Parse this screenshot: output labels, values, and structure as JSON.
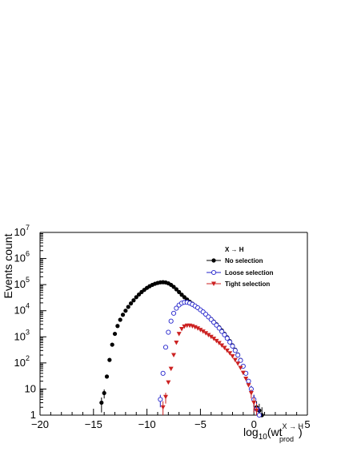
{
  "chart_data": {
    "type": "scatter",
    "title": "",
    "xlabel": "log10(wt_prod^{X→H})",
    "xlabel_parts": {
      "base": "log",
      "sub1": "10",
      "mid": "(wt",
      "sup": "X → H",
      "sub2": "prod",
      "end": ")"
    },
    "ylabel": "Events count",
    "xlim": [
      -20,
      5
    ],
    "ylim": [
      1,
      10000000
    ],
    "yscale": "log",
    "x_ticks": [
      -20,
      -15,
      -10,
      -5,
      0,
      5
    ],
    "x_tick_labels": [
      "−20",
      "−15",
      "−10",
      "−5",
      "0",
      "5"
    ],
    "y_tick_labels": [
      {
        "base": "1",
        "exp": ""
      },
      {
        "base": "10",
        "exp": ""
      },
      {
        "base": "10",
        "exp": "2"
      },
      {
        "base": "10",
        "exp": "3"
      },
      {
        "base": "10",
        "exp": "4"
      },
      {
        "base": "10",
        "exp": "5"
      },
      {
        "base": "10",
        "exp": "6"
      },
      {
        "base": "10",
        "exp": "7"
      }
    ],
    "legend_header": "X → H",
    "legend_placement": "top-right",
    "grid": false,
    "series": [
      {
        "name": "No selection",
        "color": "#000000",
        "marker": "filled-circle",
        "x": [
          -14.25,
          -14.0,
          -13.75,
          -13.5,
          -13.25,
          -13.0,
          -12.75,
          -12.5,
          -12.25,
          -12.0,
          -11.75,
          -11.5,
          -11.25,
          -11.0,
          -10.75,
          -10.5,
          -10.25,
          -10.0,
          -9.75,
          -9.5,
          -9.25,
          -9.0,
          -8.75,
          -8.5,
          -8.25,
          -8.0,
          -7.75,
          -7.5,
          -7.25,
          -7.0,
          -6.75,
          -6.5,
          -6.25,
          -6.0,
          -5.75,
          -5.5,
          -5.25,
          -5.0,
          -4.75,
          -4.5,
          -4.25,
          -4.0,
          -3.75,
          -3.5,
          -3.25,
          -3.0,
          -2.75,
          -2.5,
          -2.25,
          -2.0,
          -1.75,
          -1.5,
          -1.25,
          -1.0,
          -0.75,
          -0.5,
          -0.25,
          0.0,
          0.25,
          0.5,
          0.75
        ],
        "y": [
          3,
          7,
          30,
          130,
          500,
          1300,
          2600,
          4500,
          7000,
          10000,
          14000,
          19000,
          25000,
          33000,
          42000,
          52000,
          63000,
          75000,
          87000,
          98000,
          108000,
          116000,
          122000,
          124000,
          121000,
          112000,
          98000,
          82000,
          66000,
          52000,
          41000,
          33000,
          27000,
          22000,
          18500,
          15500,
          13000,
          10800,
          9000,
          7400,
          6000,
          4800,
          3800,
          3000,
          2300,
          1750,
          1300,
          950,
          680,
          470,
          320,
          210,
          130,
          75,
          40,
          20,
          10,
          4,
          2,
          1.5,
          1
        ]
      },
      {
        "name": "Loose selection",
        "color": "#2222cc",
        "marker": "open-circle",
        "x": [
          -8.75,
          -8.5,
          -8.25,
          -8.0,
          -7.75,
          -7.5,
          -7.25,
          -7.0,
          -6.75,
          -6.5,
          -6.25,
          -6.0,
          -5.75,
          -5.5,
          -5.25,
          -5.0,
          -4.75,
          -4.5,
          -4.25,
          -4.0,
          -3.75,
          -3.5,
          -3.25,
          -3.0,
          -2.75,
          -2.5,
          -2.25,
          -2.0,
          -1.75,
          -1.5,
          -1.25,
          -1.0,
          -0.75,
          -0.5,
          -0.25,
          0.0,
          0.25,
          0.5
        ],
        "y": [
          4,
          40,
          400,
          1500,
          4000,
          8000,
          12500,
          16500,
          19500,
          21000,
          21000,
          19500,
          17500,
          15200,
          13000,
          10800,
          9000,
          7300,
          5800,
          4600,
          3600,
          2800,
          2150,
          1600,
          1200,
          880,
          630,
          440,
          300,
          200,
          125,
          75,
          40,
          20,
          10,
          4,
          1.7,
          1
        ]
      },
      {
        "name": "Tight selection",
        "color": "#cc2222",
        "marker": "filled-triangle-down",
        "x": [
          -8.5,
          -8.25,
          -8.0,
          -7.75,
          -7.5,
          -7.25,
          -7.0,
          -6.75,
          -6.5,
          -6.25,
          -6.0,
          -5.75,
          -5.5,
          -5.25,
          -5.0,
          -4.75,
          -4.5,
          -4.25,
          -4.0,
          -3.75,
          -3.5,
          -3.25,
          -3.0,
          -2.75,
          -2.5,
          -2.25,
          -2.0,
          -1.75,
          -1.5,
          -1.25,
          -1.0,
          -0.75,
          -0.5,
          -0.25,
          0.0,
          0.25
        ],
        "y": [
          2,
          5,
          18,
          60,
          200,
          600,
          1300,
          2000,
          2500,
          2700,
          2700,
          2550,
          2350,
          2100,
          1850,
          1600,
          1380,
          1180,
          1000,
          850,
          700,
          580,
          470,
          380,
          300,
          235,
          180,
          130,
          95,
          65,
          42,
          25,
          14,
          7,
          3,
          1.5
        ]
      }
    ]
  }
}
